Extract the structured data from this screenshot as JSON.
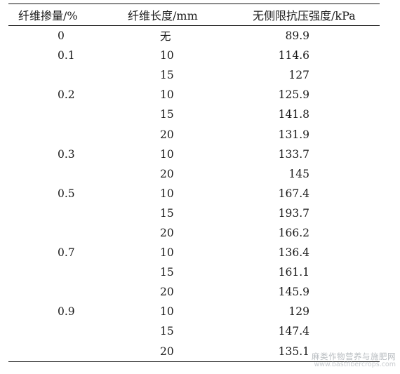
{
  "table": {
    "headers": {
      "fiber_content": "纤维掺量/%",
      "fiber_length": "纤维长度/mm",
      "ucs": "无侧限抗压强度/kPa"
    },
    "rows": [
      {
        "content": "0",
        "length": "无",
        "strength": "89.9"
      },
      {
        "content": "0.1",
        "length": "10",
        "strength": "114.6"
      },
      {
        "content": "",
        "length": "15",
        "strength": "127"
      },
      {
        "content": "0.2",
        "length": "10",
        "strength": "125.9"
      },
      {
        "content": "",
        "length": "15",
        "strength": "141.8"
      },
      {
        "content": "",
        "length": "20",
        "strength": "131.9"
      },
      {
        "content": "0.3",
        "length": "10",
        "strength": "133.7"
      },
      {
        "content": "",
        "length": "20",
        "strength": "145"
      },
      {
        "content": "0.5",
        "length": "10",
        "strength": "167.4"
      },
      {
        "content": "",
        "length": "15",
        "strength": "193.7"
      },
      {
        "content": "",
        "length": "20",
        "strength": "166.2"
      },
      {
        "content": "0.7",
        "length": "10",
        "strength": "136.4"
      },
      {
        "content": "",
        "length": "15",
        "strength": "161.1"
      },
      {
        "content": "",
        "length": "20",
        "strength": "145.9"
      },
      {
        "content": "0.9",
        "length": "10",
        "strength": "129"
      },
      {
        "content": "",
        "length": "15",
        "strength": "147.4"
      },
      {
        "content": "",
        "length": "20",
        "strength": "135.1"
      }
    ]
  },
  "watermark": {
    "line1": "麻类作物营养与施肥网",
    "line2": "www.bastfibercrops.com"
  }
}
